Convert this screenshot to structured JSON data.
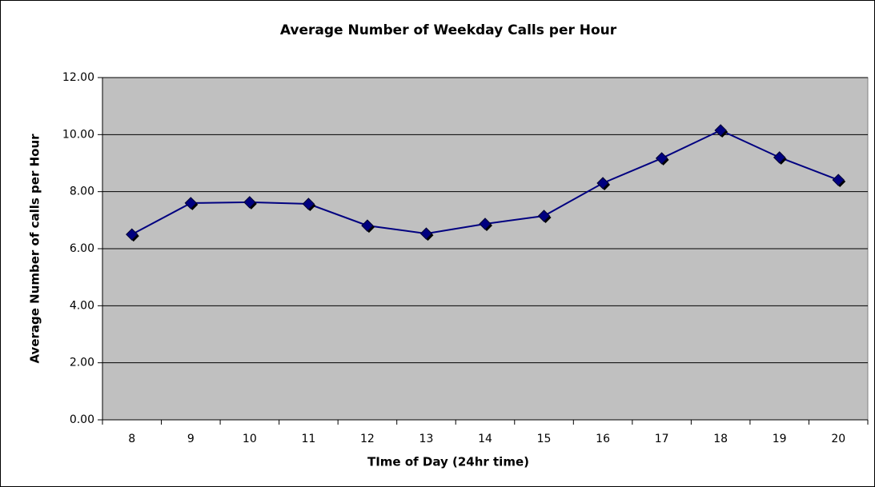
{
  "chart_data": {
    "type": "line",
    "title": "Average Number of Weekday Calls per Hour",
    "x_label": "TIme of Day (24hr time)",
    "y_label": "Average Number of calls per Hour",
    "categories": [
      "8",
      "9",
      "10",
      "11",
      "12",
      "13",
      "14",
      "15",
      "16",
      "17",
      "18",
      "19",
      "20"
    ],
    "series": [
      {
        "name": "Average Number of calls per Hour",
        "color": "#000080",
        "values": [
          6.5,
          7.6,
          7.63,
          7.57,
          6.81,
          6.53,
          6.87,
          7.15,
          8.3,
          9.17,
          10.15,
          9.2,
          8.41
        ]
      }
    ],
    "ylim": [
      0,
      12
    ],
    "yticks": [
      {
        "value": 0,
        "label": "0.00"
      },
      {
        "value": 2,
        "label": "2.00"
      },
      {
        "value": 4,
        "label": "4.00"
      },
      {
        "value": 6,
        "label": "6.00"
      },
      {
        "value": 8,
        "label": "8.00"
      },
      {
        "value": 10,
        "label": "10.00"
      },
      {
        "value": 12,
        "label": "12.00"
      }
    ],
    "grid": true,
    "plot_background": "#c0c0c0"
  }
}
